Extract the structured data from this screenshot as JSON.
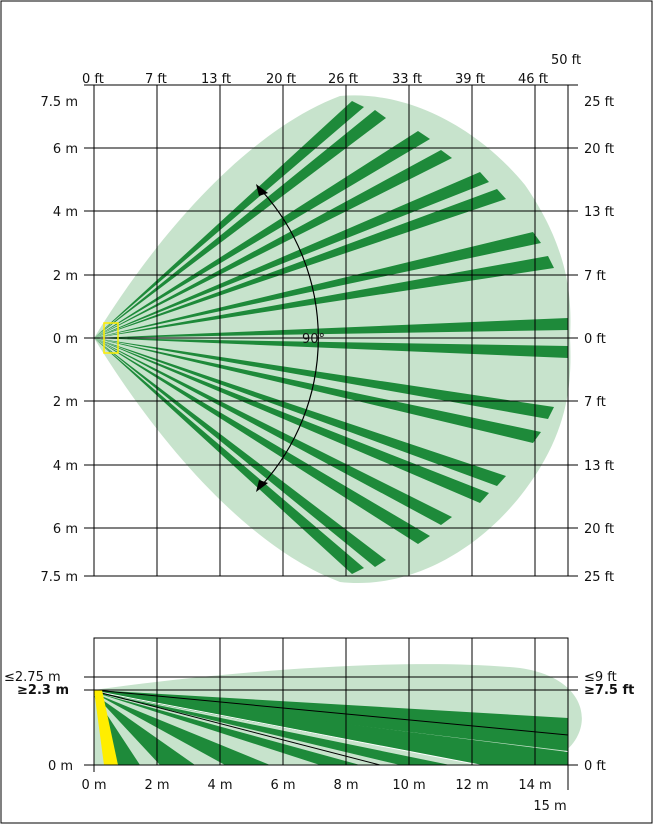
{
  "top_view": {
    "ft_top_labels": [
      "0 ft",
      "7 ft",
      "13 ft",
      "20 ft",
      "26 ft",
      "33 ft",
      "39 ft",
      "46 ft"
    ],
    "ft_top_extra": "50 ft",
    "m_left_labels": [
      "7.5 m",
      "6 m",
      "4 m",
      "2 m",
      "0 m",
      "2 m",
      "4 m",
      "6 m",
      "7.5 m"
    ],
    "ft_right_labels": [
      "25 ft",
      "20 ft",
      "13 ft",
      "7 ft",
      "0 ft",
      "7 ft",
      "13 ft",
      "20 ft",
      "25 ft"
    ],
    "angle_label": "90°"
  },
  "side_view": {
    "left_top_label": "≤2.75 m",
    "left_mount_label": "≥2.3 m",
    "left_bottom_label": "0 m",
    "right_top_label": "≤9 ft",
    "right_mount_label": "≥7.5 ft",
    "right_bottom_label": "0 ft",
    "m_bottom_labels": [
      "0 m",
      "2 m",
      "4 m",
      "6 m",
      "8 m",
      "10 m",
      "12 m",
      "14 m"
    ],
    "m_bottom_extra": "15 m"
  },
  "colors": {
    "coverage_light": "#c7e3cc",
    "beam_dark": "#1e8a3a",
    "sensor_yellow": "#ffee00",
    "grid": "#000000"
  }
}
